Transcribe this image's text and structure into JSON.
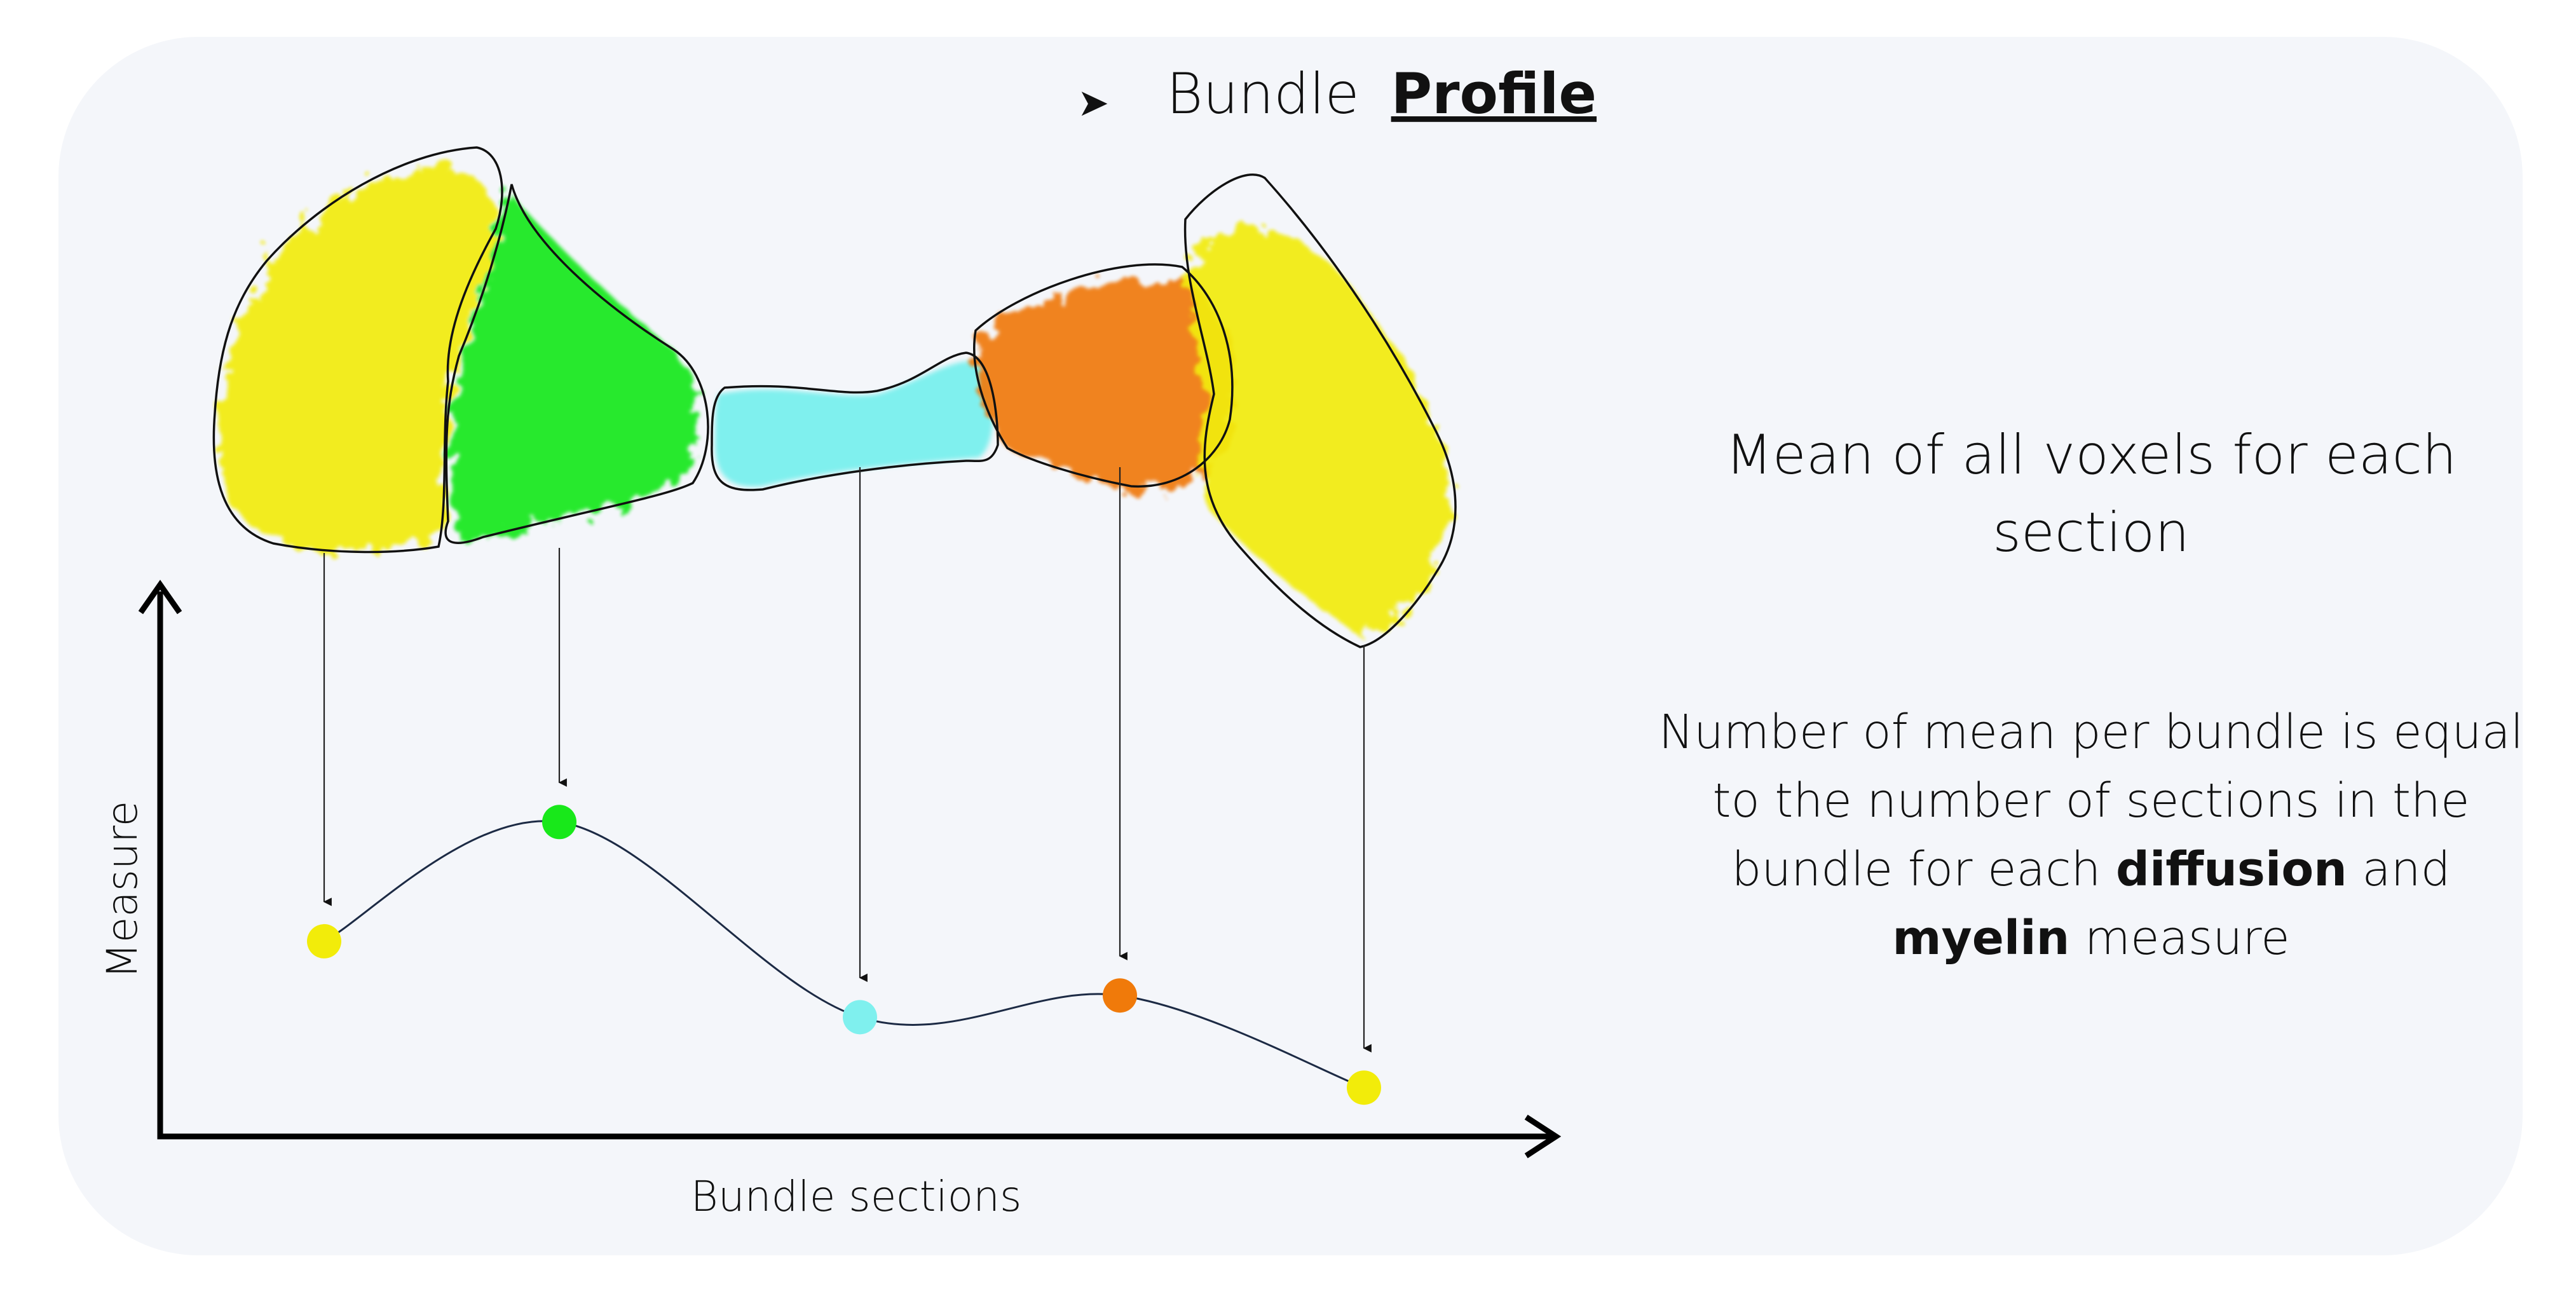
{
  "title": {
    "bullet": "➤",
    "word1": "Bundle",
    "word2": "Profile"
  },
  "axes": {
    "xlabel": "Bundle sections",
    "ylabel": "Measure"
  },
  "sections": [
    {
      "color": "#f2ec0a",
      "measure": 0.36
    },
    {
      "color": "#18e81a",
      "measure": 0.58
    },
    {
      "color": "#7ff0ee",
      "measure": 0.22
    },
    {
      "color": "#f07a0a",
      "measure": 0.26
    },
    {
      "color": "#f2ec0a",
      "measure": 0.09
    }
  ],
  "notes": {
    "mean": "Mean of all voxels for each section",
    "number_pre": "Number of mean per bundle is equal to the number of sections in the bundle for each",
    "number_b1": "diffusion",
    "number_and": "and",
    "number_b2": "myelin",
    "number_post": "measure"
  },
  "colors": {
    "panel": "#f4f6fa",
    "yellow": "#f2ec0a",
    "green": "#18e81a",
    "cyan": "#7ff0ee",
    "orange": "#f07a0a",
    "curve": "#1c2a44"
  }
}
